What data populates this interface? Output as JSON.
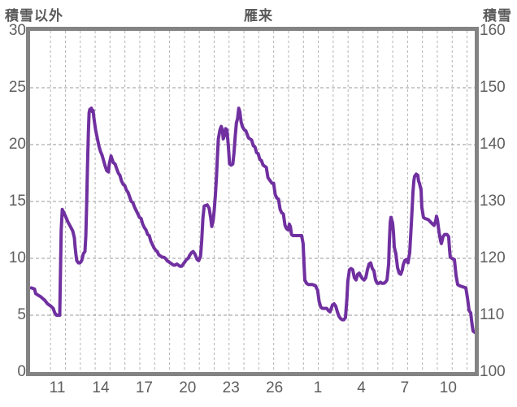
{
  "titles": {
    "left_axis_title": "積雪以外",
    "chart_title": "雁来",
    "right_axis_title": "積雪"
  },
  "colors": {
    "line": "#7030A0",
    "plot_border": "#838383",
    "grid_vertical": "#b3b3b3",
    "grid_horizontal": "#9a9a9a",
    "tick_text": "#5e5e5e",
    "title_text": "#595959"
  },
  "chart_data": {
    "type": "line",
    "title": "雁来",
    "left_axis": {
      "label": "積雪以外",
      "range": [
        0,
        30
      ],
      "tick_values": [
        30,
        25,
        20,
        15,
        10,
        5,
        0
      ],
      "tick_labels": [
        "30",
        "25",
        "20",
        "15",
        "10",
        "5",
        "0"
      ]
    },
    "right_axis": {
      "label": "積雪",
      "range": [
        100,
        160
      ],
      "tick_values": [
        160,
        150,
        140,
        130,
        120,
        110,
        100
      ],
      "tick_labels": [
        "160",
        "150",
        "140",
        "130",
        "120",
        "110",
        "100"
      ]
    },
    "x_axis": {
      "range_days": [
        0,
        30
      ],
      "tick_labels": [
        "11",
        "14",
        "17",
        "20",
        "23",
        "26",
        "1",
        "4",
        "7",
        "10"
      ],
      "tick_positions_days": [
        1.84,
        4.77,
        7.7,
        10.63,
        13.56,
        16.49,
        19.42,
        22.35,
        25.28,
        28.21
      ]
    },
    "grid": {
      "x_start_day": 1.38,
      "x_step_day": 1.0037,
      "x_count": 29,
      "y_values": [
        5,
        10,
        15,
        20,
        25
      ]
    },
    "legend": "none",
    "series": [
      {
        "name": "積雪以外",
        "color": "#7030A0",
        "points": [
          [
            0.08,
            7.4
          ],
          [
            0.3,
            7.3
          ],
          [
            0.38,
            6.9
          ],
          [
            0.74,
            6.6
          ],
          [
            1.0,
            6.3
          ],
          [
            1.18,
            6.0
          ],
          [
            1.4,
            5.8
          ],
          [
            1.56,
            5.6
          ],
          [
            1.67,
            5.2
          ],
          [
            1.78,
            5.0
          ],
          [
            2.0,
            5.0
          ],
          [
            2.04,
            8.0
          ],
          [
            2.1,
            12.5
          ],
          [
            2.17,
            14.3
          ],
          [
            2.28,
            14.0
          ],
          [
            2.39,
            13.7
          ],
          [
            2.55,
            13.2
          ],
          [
            2.72,
            12.8
          ],
          [
            2.88,
            12.4
          ],
          [
            2.99,
            11.8
          ],
          [
            3.04,
            11.0
          ],
          [
            3.1,
            10.3
          ],
          [
            3.15,
            9.8
          ],
          [
            3.26,
            9.6
          ],
          [
            3.37,
            9.6
          ],
          [
            3.48,
            9.8
          ],
          [
            3.59,
            10.4
          ],
          [
            3.7,
            10.6
          ],
          [
            3.76,
            12.0
          ],
          [
            3.82,
            15.0
          ],
          [
            3.87,
            18.0
          ],
          [
            3.93,
            21.0
          ],
          [
            3.98,
            22.8
          ],
          [
            4.03,
            23.1
          ],
          [
            4.14,
            23.2
          ],
          [
            4.2,
            22.9
          ],
          [
            4.25,
            23.0
          ],
          [
            4.31,
            22.3
          ],
          [
            4.42,
            21.3
          ],
          [
            4.53,
            20.6
          ],
          [
            4.64,
            19.9
          ],
          [
            4.75,
            19.4
          ],
          [
            4.85,
            19.1
          ],
          [
            4.96,
            18.6
          ],
          [
            5.07,
            18.1
          ],
          [
            5.18,
            17.7
          ],
          [
            5.29,
            17.6
          ],
          [
            5.35,
            18.3
          ],
          [
            5.46,
            19.0
          ],
          [
            5.51,
            18.8
          ],
          [
            5.62,
            18.4
          ],
          [
            5.73,
            18.3
          ],
          [
            5.84,
            17.9
          ],
          [
            5.95,
            17.5
          ],
          [
            6.06,
            17.3
          ],
          [
            6.17,
            16.8
          ],
          [
            6.28,
            16.5
          ],
          [
            6.39,
            16.4
          ],
          [
            6.5,
            16.0
          ],
          [
            6.61,
            15.8
          ],
          [
            6.72,
            15.4
          ],
          [
            6.83,
            15.0
          ],
          [
            6.94,
            14.9
          ],
          [
            7.05,
            14.5
          ],
          [
            7.16,
            14.2
          ],
          [
            7.27,
            13.9
          ],
          [
            7.38,
            13.6
          ],
          [
            7.49,
            13.5
          ],
          [
            7.6,
            13.0
          ],
          [
            7.71,
            12.7
          ],
          [
            7.82,
            12.5
          ],
          [
            7.93,
            12.1
          ],
          [
            8.04,
            12.0
          ],
          [
            8.15,
            11.5
          ],
          [
            8.26,
            11.2
          ],
          [
            8.37,
            10.9
          ],
          [
            8.48,
            10.7
          ],
          [
            8.58,
            10.6
          ],
          [
            8.69,
            10.3
          ],
          [
            8.8,
            10.2
          ],
          [
            8.91,
            10.1
          ],
          [
            9.02,
            10.1
          ],
          [
            9.13,
            10.0
          ],
          [
            9.24,
            9.8
          ],
          [
            9.35,
            9.7
          ],
          [
            9.46,
            9.6
          ],
          [
            9.57,
            9.5
          ],
          [
            9.68,
            9.4
          ],
          [
            9.79,
            9.4
          ],
          [
            9.9,
            9.5
          ],
          [
            10.01,
            9.4
          ],
          [
            10.12,
            9.3
          ],
          [
            10.23,
            9.3
          ],
          [
            10.34,
            9.5
          ],
          [
            10.45,
            9.7
          ],
          [
            10.56,
            9.9
          ],
          [
            10.67,
            10.0
          ],
          [
            10.78,
            10.3
          ],
          [
            10.89,
            10.5
          ],
          [
            11.0,
            10.6
          ],
          [
            11.11,
            10.4
          ],
          [
            11.27,
            9.9
          ],
          [
            11.38,
            9.8
          ],
          [
            11.5,
            10.2
          ],
          [
            11.58,
            11.5
          ],
          [
            11.66,
            13.5
          ],
          [
            11.75,
            14.6
          ],
          [
            11.95,
            14.7
          ],
          [
            12.08,
            14.4
          ],
          [
            12.18,
            13.6
          ],
          [
            12.26,
            12.8
          ],
          [
            12.35,
            13.3
          ],
          [
            12.42,
            14.2
          ],
          [
            12.5,
            15.5
          ],
          [
            12.57,
            17.0
          ],
          [
            12.64,
            19.0
          ],
          [
            12.7,
            20.5
          ],
          [
            12.81,
            21.3
          ],
          [
            12.9,
            21.6
          ],
          [
            12.98,
            21.2
          ],
          [
            13.03,
            20.5
          ],
          [
            13.14,
            20.9
          ],
          [
            13.19,
            21.4
          ],
          [
            13.28,
            21.3
          ],
          [
            13.37,
            20.0
          ],
          [
            13.46,
            18.3
          ],
          [
            13.57,
            18.2
          ],
          [
            13.68,
            18.3
          ],
          [
            13.76,
            19.3
          ],
          [
            13.83,
            20.6
          ],
          [
            13.92,
            21.9
          ],
          [
            14.0,
            22.3
          ],
          [
            14.08,
            23.2
          ],
          [
            14.15,
            22.9
          ],
          [
            14.24,
            22.0
          ],
          [
            14.32,
            21.6
          ],
          [
            14.45,
            21.3
          ],
          [
            14.56,
            21.2
          ],
          [
            14.73,
            20.6
          ],
          [
            14.84,
            20.5
          ],
          [
            14.95,
            20.4
          ],
          [
            15.06,
            19.9
          ],
          [
            15.17,
            19.8
          ],
          [
            15.28,
            19.3
          ],
          [
            15.39,
            19.2
          ],
          [
            15.5,
            18.7
          ],
          [
            15.61,
            18.6
          ],
          [
            15.72,
            18.2
          ],
          [
            15.83,
            18.1
          ],
          [
            15.94,
            18.0
          ],
          [
            16.05,
            17.1
          ],
          [
            16.21,
            16.8
          ],
          [
            16.32,
            16.6
          ],
          [
            16.43,
            16.6
          ],
          [
            16.54,
            15.6
          ],
          [
            16.65,
            15.3
          ],
          [
            16.76,
            15.2
          ],
          [
            16.87,
            14.3
          ],
          [
            16.98,
            14.0
          ],
          [
            17.09,
            13.9
          ],
          [
            17.2,
            12.9
          ],
          [
            17.31,
            12.6
          ],
          [
            17.42,
            12.5
          ],
          [
            17.49,
            13.0
          ],
          [
            17.56,
            12.8
          ],
          [
            17.64,
            12.1
          ],
          [
            17.73,
            12.0
          ],
          [
            18.32,
            12.0
          ],
          [
            18.42,
            11.3
          ],
          [
            18.48,
            9.5
          ],
          [
            18.54,
            8.1
          ],
          [
            18.65,
            7.8
          ],
          [
            18.78,
            7.7
          ],
          [
            19.05,
            7.7
          ],
          [
            19.25,
            7.6
          ],
          [
            19.4,
            7.2
          ],
          [
            19.5,
            6.2
          ],
          [
            19.62,
            5.7
          ],
          [
            19.73,
            5.6
          ],
          [
            20.02,
            5.6
          ],
          [
            20.13,
            5.4
          ],
          [
            20.24,
            5.3
          ],
          [
            20.4,
            5.9
          ],
          [
            20.51,
            6.0
          ],
          [
            20.62,
            5.8
          ],
          [
            20.73,
            5.3
          ],
          [
            20.84,
            4.9
          ],
          [
            20.95,
            4.7
          ],
          [
            21.06,
            4.6
          ],
          [
            21.17,
            4.6
          ],
          [
            21.28,
            4.8
          ],
          [
            21.38,
            6.5
          ],
          [
            21.44,
            8.0
          ],
          [
            21.55,
            9.0
          ],
          [
            21.66,
            9.1
          ],
          [
            21.77,
            9.0
          ],
          [
            21.88,
            8.3
          ],
          [
            21.99,
            8.1
          ],
          [
            22.1,
            8.6
          ],
          [
            22.21,
            8.7
          ],
          [
            22.32,
            8.4
          ],
          [
            22.43,
            8.2
          ],
          [
            22.54,
            8.1
          ],
          [
            22.65,
            8.3
          ],
          [
            22.76,
            9.0
          ],
          [
            22.87,
            9.5
          ],
          [
            22.98,
            9.6
          ],
          [
            23.09,
            9.1
          ],
          [
            23.2,
            8.9
          ],
          [
            23.31,
            8.1
          ],
          [
            23.42,
            7.8
          ],
          [
            23.53,
            7.8
          ],
          [
            23.64,
            7.9
          ],
          [
            23.75,
            7.8
          ],
          [
            23.86,
            7.8
          ],
          [
            23.97,
            7.9
          ],
          [
            24.08,
            8.1
          ],
          [
            24.19,
            9.5
          ],
          [
            24.24,
            11.5
          ],
          [
            24.3,
            13.2
          ],
          [
            24.35,
            13.6
          ],
          [
            24.46,
            13.1
          ],
          [
            24.52,
            12.2
          ],
          [
            24.57,
            11.0
          ],
          [
            24.68,
            10.4
          ],
          [
            24.79,
            9.2
          ],
          [
            24.9,
            8.7
          ],
          [
            25.01,
            8.6
          ],
          [
            25.12,
            9.0
          ],
          [
            25.17,
            9.4
          ],
          [
            25.28,
            9.8
          ],
          [
            25.39,
            9.9
          ],
          [
            25.5,
            9.6
          ],
          [
            25.61,
            10.5
          ],
          [
            25.72,
            13.0
          ],
          [
            25.78,
            14.5
          ],
          [
            25.83,
            15.8
          ],
          [
            25.89,
            16.8
          ],
          [
            25.94,
            17.2
          ],
          [
            26.05,
            17.4
          ],
          [
            26.16,
            17.3
          ],
          [
            26.21,
            16.8
          ],
          [
            26.27,
            16.6
          ],
          [
            26.38,
            16.0
          ],
          [
            26.43,
            14.5
          ],
          [
            26.54,
            13.6
          ],
          [
            26.65,
            13.5
          ],
          [
            26.87,
            13.4
          ],
          [
            27.09,
            13.1
          ],
          [
            27.26,
            12.9
          ],
          [
            27.37,
            13.3
          ],
          [
            27.42,
            13.7
          ],
          [
            27.48,
            13.4
          ],
          [
            27.59,
            12.3
          ],
          [
            27.7,
            11.5
          ],
          [
            27.75,
            11.3
          ],
          [
            27.86,
            11.9
          ],
          [
            27.97,
            12.1
          ],
          [
            28.13,
            12.1
          ],
          [
            28.24,
            11.9
          ],
          [
            28.3,
            10.8
          ],
          [
            28.35,
            10.1
          ],
          [
            28.46,
            10.0
          ],
          [
            28.63,
            9.9
          ],
          [
            28.74,
            8.5
          ],
          [
            28.85,
            7.7
          ],
          [
            28.96,
            7.6
          ],
          [
            29.18,
            7.5
          ],
          [
            29.4,
            7.4
          ],
          [
            29.51,
            6.5
          ],
          [
            29.62,
            5.4
          ],
          [
            29.73,
            5.2
          ],
          [
            29.78,
            4.6
          ],
          [
            29.84,
            4.0
          ],
          [
            29.89,
            3.6
          ],
          [
            30.0,
            3.5
          ]
        ]
      }
    ]
  }
}
